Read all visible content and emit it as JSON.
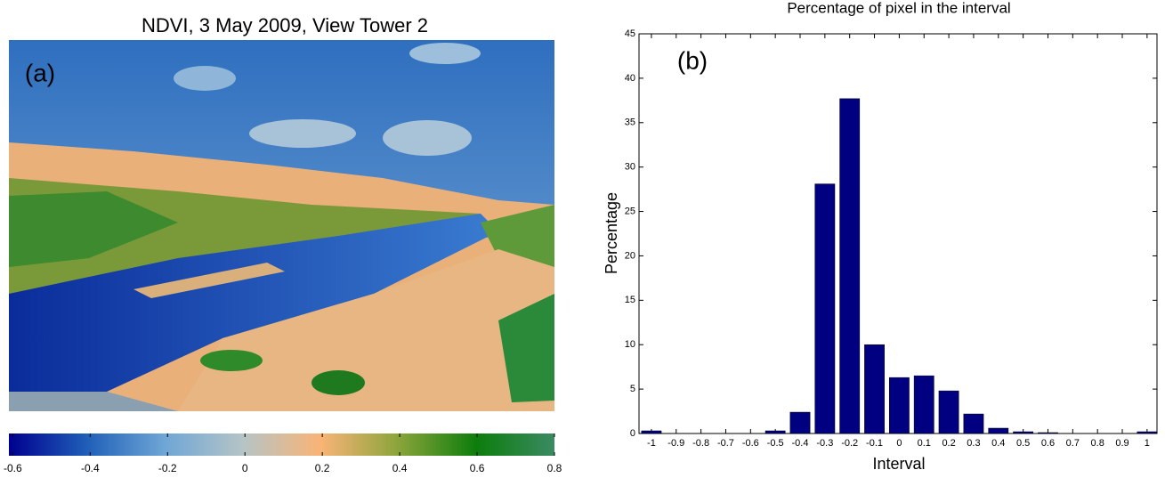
{
  "chart_data": [
    {
      "type": "image",
      "title": "NDVI, 3 May 2009, View Tower 2",
      "annotation": "(a)",
      "colormap": [
        "#00008f",
        "#1f5fb8",
        "#6fa6d6",
        "#b5c4c6",
        "#f9b476",
        "#8aa43a",
        "#0c7d0c",
        "#3b8a62"
      ],
      "clim": [
        -0.61,
        0.8
      ],
      "cticks": [
        -0.6,
        -0.4,
        -0.2,
        0,
        0.2,
        0.4,
        0.6,
        0.8
      ]
    },
    {
      "type": "bar",
      "title": "Percentage of pixel in the interval",
      "annotation": "(b)",
      "xlabel": "Interval",
      "ylabel": "Percentage",
      "color": "#000080",
      "x": [
        -1,
        -0.9,
        -0.8,
        -0.7,
        -0.6,
        -0.5,
        -0.4,
        -0.3,
        -0.2,
        -0.1,
        0,
        0.1,
        0.2,
        0.3,
        0.4,
        0.5,
        0.6,
        0.7,
        0.8,
        0.9,
        1
      ],
      "values": [
        0.3,
        0,
        0,
        0,
        0,
        0.3,
        2.4,
        28.1,
        37.7,
        10.0,
        6.3,
        6.5,
        4.8,
        2.2,
        0.6,
        0.2,
        0.1,
        0,
        0,
        0,
        0.2
      ],
      "xlim": [
        -1.05,
        1.04
      ],
      "xticks": [
        -1,
        -0.9,
        -0.8,
        -0.7,
        -0.6,
        -0.5,
        -0.4,
        -0.3,
        -0.2,
        -0.1,
        0,
        0.1,
        0.2,
        0.3,
        0.4,
        0.5,
        0.6,
        0.7,
        0.8,
        0.9,
        1
      ],
      "ylim": [
        0,
        45
      ],
      "yticks": [
        0,
        5,
        10,
        15,
        20,
        25,
        30,
        35,
        40,
        45
      ]
    }
  ]
}
